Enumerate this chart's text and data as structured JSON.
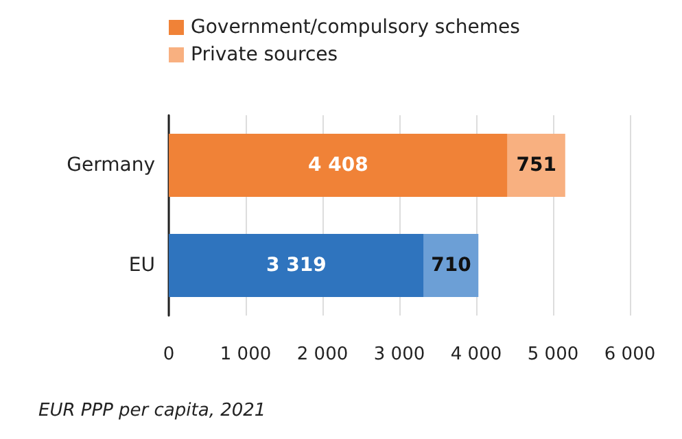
{
  "chart_data": {
    "type": "bar",
    "orientation": "horizontal",
    "stacked": true,
    "categories": [
      "Germany",
      "EU"
    ],
    "series": [
      {
        "name": "Government/compulsory schemes",
        "colors": [
          "#f08237",
          "#2f74be"
        ],
        "values": [
          4408,
          3319
        ],
        "value_labels": [
          "4 408",
          "3 319"
        ]
      },
      {
        "name": "Private sources",
        "colors": [
          "#f8b080",
          "#6c9fd6"
        ],
        "values": [
          751,
          710
        ],
        "value_labels": [
          "751",
          "710"
        ]
      }
    ],
    "xlim": [
      0,
      6000
    ],
    "xticks": [
      {
        "value": 0,
        "label": "0"
      },
      {
        "value": 1000,
        "label": "1 000"
      },
      {
        "value": 2000,
        "label": "2 000"
      },
      {
        "value": 3000,
        "label": "3 000"
      },
      {
        "value": 4000,
        "label": "4 000"
      },
      {
        "value": 5000,
        "label": "5 000"
      },
      {
        "value": 6000,
        "label": "6 000"
      }
    ],
    "grid": "x",
    "legend": "top",
    "annotations": [
      "EUR PPP per capita, 2021"
    ]
  }
}
